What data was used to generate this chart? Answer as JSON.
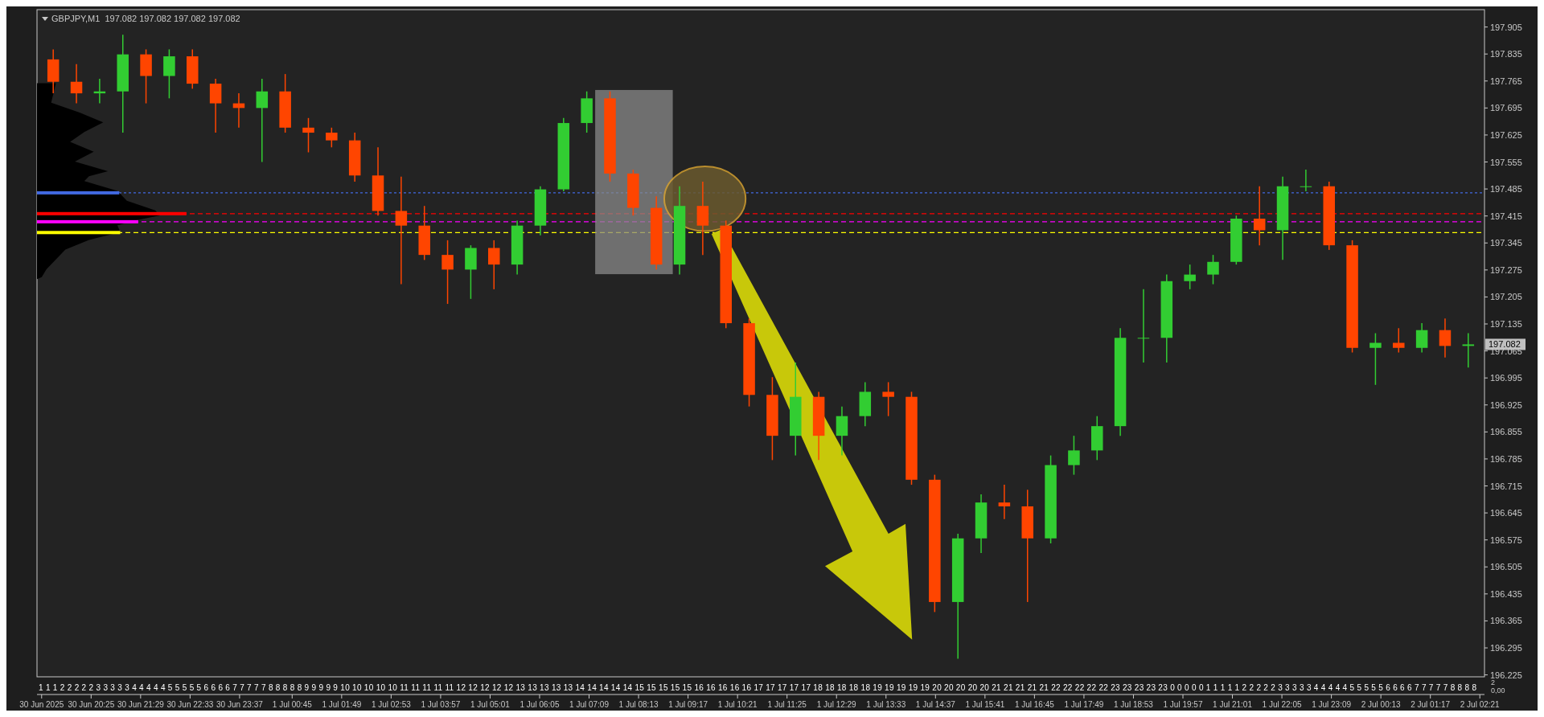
{
  "chart_data": {
    "type": "candlestick",
    "title": "GBPJPY,M1  197.082 197.082 197.082 197.082",
    "x": [
      "2025-06-30T19:36",
      "2025-06-30T20:06",
      "2025-06-30T20:36",
      "2025-06-30T21:06",
      "2025-06-30T21:36",
      "2025-06-30T22:06",
      "2025-06-30T22:36",
      "2025-06-30T23:06",
      "2025-06-30T23:36",
      "2025-07-01T00:06",
      "2025-07-01T00:36",
      "2025-07-01T01:06",
      "2025-07-01T01:36",
      "2025-07-01T02:06",
      "2025-07-01T02:36",
      "2025-07-01T03:06",
      "2025-07-01T03:36",
      "2025-07-01T04:06",
      "2025-07-01T04:36",
      "2025-07-01T05:06",
      "2025-07-01T05:36",
      "2025-07-01T06:06",
      "2025-07-01T06:36",
      "2025-07-01T07:06",
      "2025-07-01T07:36",
      "2025-07-01T08:06",
      "2025-07-01T08:36",
      "2025-07-01T09:06",
      "2025-07-01T09:36",
      "2025-07-01T10:06",
      "2025-07-01T10:36",
      "2025-07-01T11:06",
      "2025-07-01T11:36",
      "2025-07-01T12:06",
      "2025-07-01T12:36",
      "2025-07-01T13:06",
      "2025-07-01T13:36",
      "2025-07-01T14:06",
      "2025-07-01T14:36",
      "2025-07-01T15:06",
      "2025-07-01T15:36",
      "2025-07-01T16:06",
      "2025-07-01T16:36",
      "2025-07-01T17:06",
      "2025-07-01T17:36",
      "2025-07-01T18:06",
      "2025-07-01T18:36",
      "2025-07-01T19:06",
      "2025-07-01T19:36",
      "2025-07-01T20:06",
      "2025-07-01T20:36",
      "2025-07-01T21:06",
      "2025-07-01T21:36",
      "2025-07-01T22:06",
      "2025-07-01T22:36",
      "2025-07-01T23:06",
      "2025-07-01T23:36",
      "2025-07-02T00:06",
      "2025-07-02T00:36",
      "2025-07-02T01:06",
      "2025-07-02T01:36",
      "2025-07-02T02:06"
    ],
    "ohlc": [
      [
        197.821,
        197.847,
        197.733,
        197.763
      ],
      [
        197.763,
        197.809,
        197.707,
        197.733
      ],
      [
        197.733,
        197.771,
        197.707,
        197.738
      ],
      [
        197.738,
        197.885,
        197.631,
        197.834
      ],
      [
        197.834,
        197.847,
        197.707,
        197.778
      ],
      [
        197.778,
        197.847,
        197.72,
        197.829
      ],
      [
        197.829,
        197.847,
        197.745,
        197.758
      ],
      [
        197.758,
        197.771,
        197.631,
        197.707
      ],
      [
        197.707,
        197.733,
        197.644,
        197.695
      ],
      [
        197.695,
        197.771,
        197.555,
        197.738
      ],
      [
        197.738,
        197.783,
        197.631,
        197.644
      ],
      [
        197.644,
        197.669,
        197.58,
        197.631
      ],
      [
        197.631,
        197.644,
        197.593,
        197.611
      ],
      [
        197.611,
        197.631,
        197.504,
        197.52
      ],
      [
        197.52,
        197.593,
        197.416,
        197.428
      ],
      [
        197.428,
        197.517,
        197.238,
        197.39
      ],
      [
        197.39,
        197.441,
        197.301,
        197.314
      ],
      [
        197.314,
        197.352,
        197.187,
        197.276
      ],
      [
        197.276,
        197.339,
        197.2,
        197.332
      ],
      [
        197.332,
        197.352,
        197.225,
        197.289
      ],
      [
        197.289,
        197.403,
        197.263,
        197.39
      ],
      [
        197.39,
        197.492,
        197.365,
        197.484
      ],
      [
        197.484,
        197.669,
        197.479,
        197.656
      ],
      [
        197.656,
        197.738,
        197.631,
        197.72
      ],
      [
        197.72,
        197.738,
        197.504,
        197.525
      ],
      [
        197.525,
        197.535,
        197.416,
        197.436
      ],
      [
        197.436,
        197.466,
        197.276,
        197.289
      ],
      [
        197.289,
        197.492,
        197.263,
        197.441
      ],
      [
        197.441,
        197.504,
        197.314,
        197.39
      ],
      [
        197.39,
        197.403,
        197.124,
        197.137
      ],
      [
        197.137,
        197.149,
        196.921,
        196.951
      ],
      [
        196.951,
        196.997,
        196.782,
        196.845
      ],
      [
        196.845,
        197.035,
        196.794,
        196.946
      ],
      [
        196.946,
        196.959,
        196.782,
        196.845
      ],
      [
        196.845,
        196.921,
        196.794,
        196.896
      ],
      [
        196.896,
        196.984,
        196.87,
        196.959
      ],
      [
        196.959,
        196.984,
        196.896,
        196.946
      ],
      [
        196.946,
        196.959,
        196.718,
        196.731
      ],
      [
        196.731,
        196.744,
        196.388,
        196.414
      ],
      [
        196.414,
        196.591,
        196.267,
        196.579
      ],
      [
        196.579,
        196.693,
        196.541,
        196.672
      ],
      [
        196.672,
        196.718,
        196.629,
        196.662
      ],
      [
        196.662,
        196.705,
        196.414,
        196.579
      ],
      [
        196.579,
        196.794,
        196.566,
        196.769
      ],
      [
        196.769,
        196.845,
        196.744,
        196.807
      ],
      [
        196.807,
        196.896,
        196.782,
        196.87
      ],
      [
        196.87,
        197.124,
        196.845,
        197.099
      ],
      [
        197.099,
        197.225,
        197.035,
        197.099
      ],
      [
        197.099,
        197.263,
        197.035,
        197.246
      ],
      [
        197.246,
        197.289,
        197.225,
        197.263
      ],
      [
        197.263,
        197.314,
        197.238,
        197.296
      ],
      [
        197.296,
        197.416,
        197.289,
        197.408
      ],
      [
        197.408,
        197.492,
        197.339,
        197.378
      ],
      [
        197.378,
        197.517,
        197.301,
        197.492
      ],
      [
        197.492,
        197.535,
        197.479,
        197.492
      ],
      [
        197.492,
        197.504,
        197.327,
        197.339
      ],
      [
        197.339,
        197.352,
        197.061,
        197.073
      ],
      [
        197.073,
        197.111,
        196.977,
        197.086
      ],
      [
        197.086,
        197.124,
        197.061,
        197.073
      ],
      [
        197.073,
        197.137,
        197.061,
        197.119
      ],
      [
        197.119,
        197.149,
        197.048,
        197.078
      ],
      [
        197.078,
        197.111,
        197.022,
        197.082
      ]
    ],
    "xlim": [
      "2025-06-30T19:15",
      "2025-07-02T02:27"
    ],
    "xticks": [
      {
        "value": "2025-06-30T19:21",
        "label": "30 Jun 2025"
      },
      {
        "value": "2025-06-30T20:25",
        "label": "30 Jun 20:25"
      },
      {
        "value": "2025-06-30T21:29",
        "label": "30 Jun 21:29"
      },
      {
        "value": "2025-06-30T22:33",
        "label": "30 Jun 22:33"
      },
      {
        "value": "2025-06-30T23:37",
        "label": "30 Jun 23:37"
      },
      {
        "value": "2025-07-01T00:45",
        "label": "1 Jul 00:45"
      },
      {
        "value": "2025-07-01T01:49",
        "label": "1 Jul 01:49"
      },
      {
        "value": "2025-07-01T02:53",
        "label": "1 Jul 02:53"
      },
      {
        "value": "2025-07-01T03:57",
        "label": "1 Jul 03:57"
      },
      {
        "value": "2025-07-01T05:01",
        "label": "1 Jul 05:01"
      },
      {
        "value": "2025-07-01T06:05",
        "label": "1 Jul 06:05"
      },
      {
        "value": "2025-07-01T07:09",
        "label": "1 Jul 07:09"
      },
      {
        "value": "2025-07-01T08:13",
        "label": "1 Jul 08:13"
      },
      {
        "value": "2025-07-01T09:17",
        "label": "1 Jul 09:17"
      },
      {
        "value": "2025-07-01T10:21",
        "label": "1 Jul 10:21"
      },
      {
        "value": "2025-07-01T11:25",
        "label": "1 Jul 11:25"
      },
      {
        "value": "2025-07-01T12:29",
        "label": "1 Jul 12:29"
      },
      {
        "value": "2025-07-01T13:33",
        "label": "1 Jul 13:33"
      },
      {
        "value": "2025-07-01T14:37",
        "label": "1 Jul 14:37"
      },
      {
        "value": "2025-07-01T15:41",
        "label": "1 Jul 15:41"
      },
      {
        "value": "2025-07-01T16:45",
        "label": "1 Jul 16:45"
      },
      {
        "value": "2025-07-01T17:49",
        "label": "1 Jul 17:49"
      },
      {
        "value": "2025-07-01T18:53",
        "label": "1 Jul 18:53"
      },
      {
        "value": "2025-07-01T19:57",
        "label": "1 Jul 19:57"
      },
      {
        "value": "2025-07-01T21:01",
        "label": "1 Jul 21:01"
      },
      {
        "value": "2025-07-01T22:05",
        "label": "1 Jul 22:05"
      },
      {
        "value": "2025-07-01T23:09",
        "label": "1 Jul 23:09"
      },
      {
        "value": "2025-07-02T00:13",
        "label": "2 Jul 00:13"
      },
      {
        "value": "2025-07-02T01:17",
        "label": "2 Jul 01:17"
      },
      {
        "value": "2025-07-02T02:21",
        "label": "2 Jul 02:21"
      }
    ],
    "ylim": [
      196.22,
      197.95
    ],
    "yticks": [
      196.225,
      196.295,
      196.365,
      196.435,
      196.505,
      196.575,
      196.645,
      196.715,
      196.785,
      196.855,
      196.925,
      196.995,
      197.065,
      197.135,
      197.205,
      197.275,
      197.345,
      197.415,
      197.485,
      197.555,
      197.625,
      197.695,
      197.765,
      197.835,
      197.905
    ],
    "ref_lines": [
      {
        "axis": "y",
        "value": 197.475,
        "color": "#4169e1",
        "line_style": "dotted"
      },
      {
        "axis": "y",
        "value": 197.421,
        "color": "#ff0000",
        "line_style": "dashed"
      },
      {
        "axis": "y",
        "value": 197.4,
        "color": "#ff00ff",
        "line_style": "dashed"
      },
      {
        "axis": "y",
        "value": 197.372,
        "color": "#ffff00",
        "line_style": "dashed"
      }
    ],
    "annotations": [
      "197.082",
      "1 1 1 2 2 2 2 2 3 3 3 3 3 4 4 4 4 4 5 5 5 5 5 6 6 6 6 7 7 7 7 7 8 8 8 8 8 9 9 9 9 9 10 10 10 10 10 11 11 11 11 11 12 12 12 12 12 13 13 13 13 13 14 14 14 14 14 15 15 15 15 15 16 16 16 16 16 17 17 17 17 17 18 18 18 18 18 19 19 19 19 19 20 20 20 20 20 21 21 21 21 21 22 22 22 22 22 23 23 23 23 23 0 0 0 0 0 1 1 1 1 1 2 2 2 2 2 3 3 3 3 3 4 4 4 4 4 5 5 5 5 5 6 6 6 6 7 7 7 7 7 8 8 8 8",
      "2",
      "0,00"
    ]
  }
}
